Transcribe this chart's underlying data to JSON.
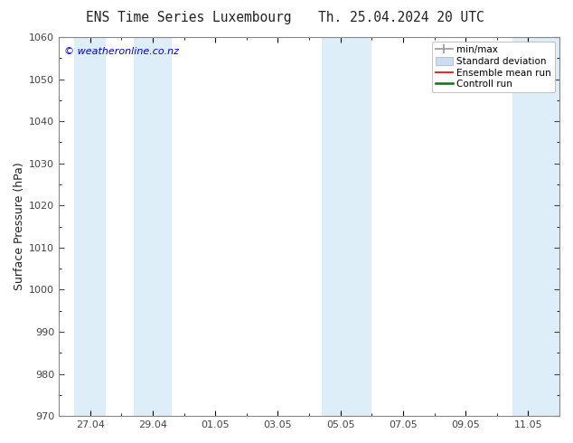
{
  "title_left": "ENS Time Series Luxembourg",
  "title_right": "Th. 25.04.2024 20 UTC",
  "ylabel": "Surface Pressure (hPa)",
  "ylim": [
    970,
    1060
  ],
  "yticks": [
    970,
    980,
    990,
    1000,
    1010,
    1020,
    1030,
    1040,
    1050,
    1060
  ],
  "xtick_labels": [
    "27.04",
    "29.04",
    "01.05",
    "03.05",
    "05.05",
    "07.05",
    "09.05",
    "11.05"
  ],
  "watermark": "© weatheronline.co.nz",
  "watermark_color": "#0000cc",
  "background_color": "#ffffff",
  "plot_bg_color": "#ffffff",
  "band_color": "#ddeef8",
  "legend_items": [
    {
      "label": "min/max",
      "color": "#aaaaaa",
      "style": "errorbar"
    },
    {
      "label": "Standard deviation",
      "color": "#ccdded",
      "style": "fill"
    },
    {
      "label": "Ensemble mean run",
      "color": "#ff0000",
      "style": "line"
    },
    {
      "label": "Controll run",
      "color": "#007700",
      "style": "line"
    }
  ],
  "font_color": "#222222",
  "tick_color": "#444444",
  "title_fontsize": 10.5,
  "label_fontsize": 9,
  "tick_fontsize": 8,
  "watermark_fontsize": 8,
  "legend_fontsize": 7.5
}
